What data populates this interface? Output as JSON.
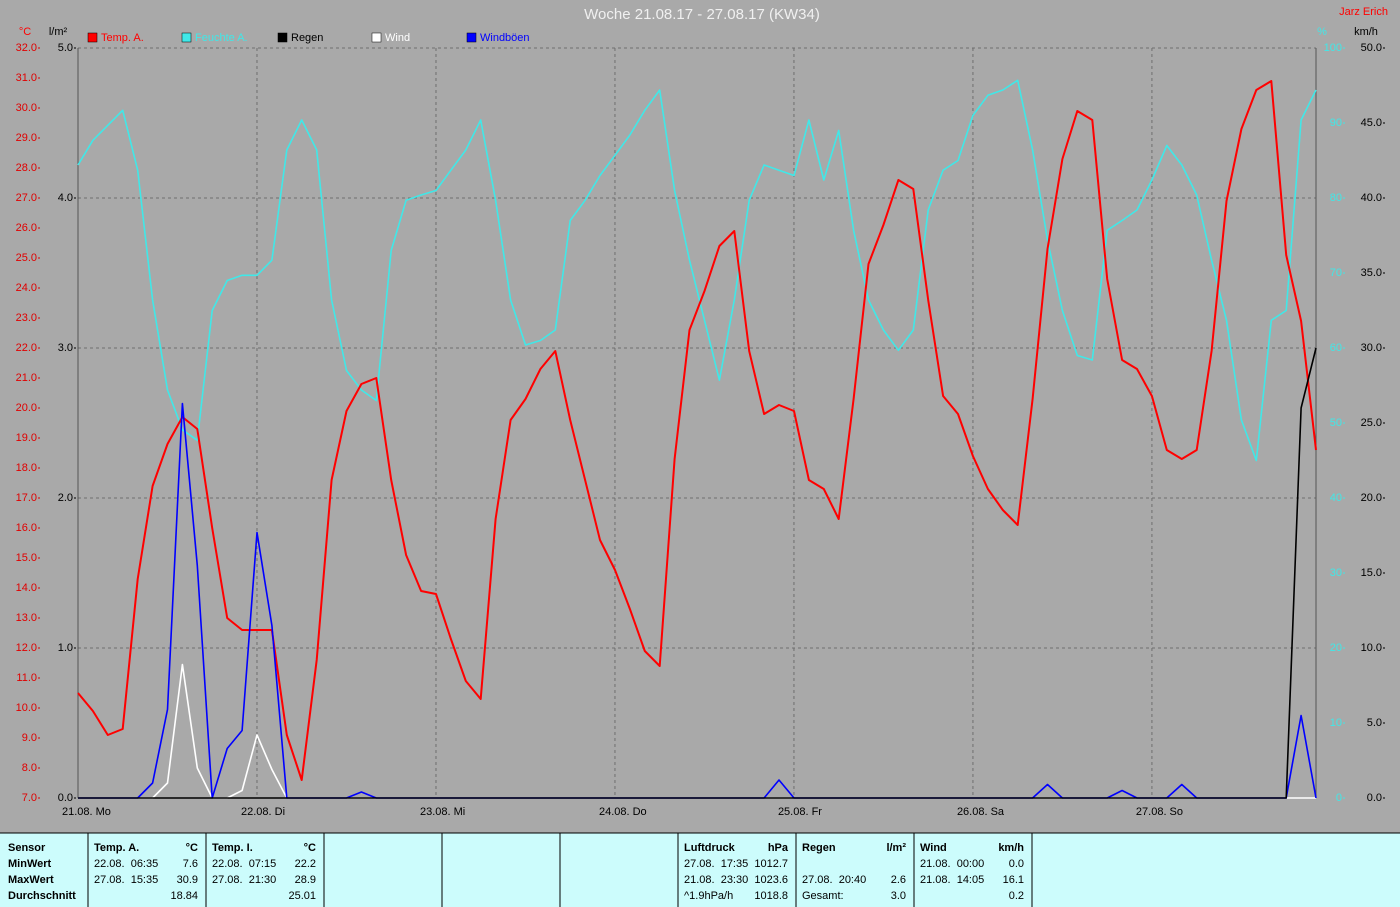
{
  "chart_data": {
    "type": "line",
    "title": "Woche 21.08.17 - 27.08.17 (KW34)",
    "author": "Jarz Erich",
    "y_label": "°C",
    "y2_label": "l/m²",
    "y3_label": "%",
    "y4_label": "km/h",
    "categories": [
      "21.08. Mo",
      null,
      null,
      null,
      null,
      null,
      null,
      null,
      null,
      null,
      null,
      null,
      "22.08. Di",
      null,
      null,
      null,
      null,
      null,
      null,
      null,
      null,
      null,
      null,
      null,
      "23.08. Mi",
      null,
      null,
      null,
      null,
      null,
      null,
      null,
      null,
      null,
      null,
      null,
      "24.08. Do",
      null,
      null,
      null,
      null,
      null,
      null,
      null,
      null,
      null,
      null,
      null,
      "25.08. Fr",
      null,
      null,
      null,
      null,
      null,
      null,
      null,
      null,
      null,
      null,
      null,
      "26.08. Sa",
      null,
      null,
      null,
      null,
      null,
      null,
      null,
      null,
      null,
      null,
      null,
      "27.08. So",
      null,
      null,
      null,
      null,
      null,
      null,
      null,
      null,
      null,
      null,
      null
    ],
    "ylim": [
      7,
      32
    ],
    "yticks": [
      {
        "value": 7,
        "label": "7.0"
      },
      {
        "value": 8,
        "label": "8.0"
      },
      {
        "value": 9,
        "label": "9.0"
      },
      {
        "value": 10,
        "label": "10.0"
      },
      {
        "value": 11,
        "label": "11.0"
      },
      {
        "value": 12,
        "label": "12.0"
      },
      {
        "value": 13,
        "label": "13.0"
      },
      {
        "value": 14,
        "label": "14.0"
      },
      {
        "value": 15,
        "label": "15.0"
      },
      {
        "value": 16,
        "label": "16.0"
      },
      {
        "value": 17,
        "label": "17.0"
      },
      {
        "value": 18,
        "label": "18.0"
      },
      {
        "value": 19,
        "label": "19.0"
      },
      {
        "value": 20,
        "label": "20.0"
      },
      {
        "value": 21,
        "label": "21.0"
      },
      {
        "value": 22,
        "label": "22.0"
      },
      {
        "value": 23,
        "label": "23.0"
      },
      {
        "value": 24,
        "label": "24.0"
      },
      {
        "value": 25,
        "label": "25.0"
      },
      {
        "value": 26,
        "label": "26.0"
      },
      {
        "value": 27,
        "label": "27.0"
      },
      {
        "value": 28,
        "label": "28.0"
      },
      {
        "value": 29,
        "label": "29.0"
      },
      {
        "value": 30,
        "label": "30.0"
      },
      {
        "value": 31,
        "label": "31.0"
      },
      {
        "value": 32,
        "label": "32.0"
      }
    ],
    "y2lim": [
      0,
      5
    ],
    "y2ticks": [
      {
        "value": 0,
        "label": "0.0"
      },
      {
        "value": 1,
        "label": "1.0"
      },
      {
        "value": 2,
        "label": "2.0"
      },
      {
        "value": 3,
        "label": "3.0"
      },
      {
        "value": 4,
        "label": "4.0"
      },
      {
        "value": 5,
        "label": "5.0"
      }
    ],
    "y3lim": [
      0,
      100
    ],
    "y3ticks": [
      0,
      10,
      20,
      30,
      40,
      50,
      60,
      70,
      80,
      90,
      100
    ],
    "y4lim": [
      0,
      50
    ],
    "y4ticks": [
      {
        "value": 0,
        "label": "0.0"
      },
      {
        "value": 5,
        "label": "5.0"
      },
      {
        "value": 10,
        "label": "10.0"
      },
      {
        "value": 15,
        "label": "15.0"
      },
      {
        "value": 20,
        "label": "20.0"
      },
      {
        "value": 25,
        "label": "25.0"
      },
      {
        "value": 30,
        "label": "30.0"
      },
      {
        "value": 35,
        "label": "35.0"
      },
      {
        "value": 40,
        "label": "40.0"
      },
      {
        "value": 45,
        "label": "45.0"
      },
      {
        "value": 50,
        "label": "50.0"
      }
    ],
    "grid": true,
    "series": [
      {
        "name": "Temp. A.",
        "color": "#ff0000",
        "axis": "y",
        "values": [
          10.5,
          9.9,
          9.1,
          9.3,
          14.3,
          17.4,
          18.8,
          19.7,
          19.3,
          16.0,
          13.0,
          12.6,
          12.6,
          12.6,
          9.1,
          7.6,
          11.6,
          17.6,
          19.9,
          20.8,
          21.0,
          17.6,
          15.1,
          13.9,
          13.8,
          12.3,
          10.9,
          10.3,
          16.3,
          19.6,
          20.3,
          21.3,
          21.9,
          19.6,
          17.6,
          15.6,
          14.6,
          13.3,
          11.9,
          11.4,
          18.3,
          22.6,
          23.9,
          25.4,
          25.9,
          21.9,
          19.8,
          20.1,
          19.9,
          17.6,
          17.3,
          16.3,
          20.3,
          24.8,
          26.1,
          27.6,
          27.3,
          23.6,
          20.4,
          19.8,
          18.4,
          17.3,
          16.6,
          16.1,
          20.3,
          25.3,
          28.3,
          29.9,
          29.6,
          24.3,
          21.6,
          21.3,
          20.4,
          18.6,
          18.3,
          18.6,
          21.9,
          26.9,
          29.3,
          30.6,
          30.9,
          25.1,
          22.9,
          18.6
        ]
      },
      {
        "name": "Feuchte A.",
        "color": "#40e8e8",
        "axis": "y3",
        "values": [
          84.4,
          87.7,
          89.7,
          91.7,
          83.7,
          66.4,
          54.4,
          49.1,
          47.7,
          65.0,
          69.0,
          69.7,
          69.7,
          71.7,
          86.4,
          90.4,
          86.4,
          66.4,
          57.0,
          54.4,
          53.0,
          73.0,
          79.7,
          80.4,
          81.0,
          83.7,
          86.4,
          90.4,
          79.7,
          66.4,
          60.4,
          61.0,
          62.4,
          77.0,
          79.7,
          83.0,
          85.7,
          88.4,
          91.7,
          94.4,
          81.0,
          71.7,
          63.7,
          55.7,
          66.4,
          79.7,
          84.4,
          83.7,
          83.0,
          90.4,
          82.4,
          89.0,
          75.7,
          66.4,
          62.4,
          59.7,
          62.4,
          78.4,
          83.7,
          85.0,
          91.0,
          93.7,
          94.4,
          95.7,
          86.4,
          74.4,
          65.0,
          59.0,
          58.4,
          75.7,
          77.0,
          78.4,
          82.4,
          87.0,
          84.4,
          80.4,
          71.7,
          63.7,
          50.4,
          45.0,
          63.7,
          65.0,
          90.4,
          94.4
        ]
      },
      {
        "name": "Regen",
        "color": "#000000",
        "axis": "y2",
        "values": [
          0,
          0,
          0,
          0,
          0,
          0,
          0,
          0,
          0,
          0,
          0,
          0,
          0,
          0,
          0,
          0,
          0,
          0,
          0,
          0,
          0,
          0,
          0,
          0,
          0,
          0,
          0,
          0,
          0,
          0,
          0,
          0,
          0,
          0,
          0,
          0,
          0,
          0,
          0,
          0,
          0,
          0,
          0,
          0,
          0,
          0,
          0,
          0,
          0,
          0,
          0,
          0,
          0,
          0,
          0,
          0,
          0,
          0,
          0,
          0,
          0,
          0,
          0,
          0,
          0,
          0,
          0,
          0,
          0,
          0,
          0,
          0,
          0,
          0,
          0,
          0,
          0,
          0,
          0,
          0,
          0,
          0,
          2.6,
          3.0
        ]
      },
      {
        "name": "Wind",
        "color": "#ffffff",
        "axis": "y4",
        "values": [
          0,
          0,
          0,
          0,
          0,
          0,
          1,
          8.9,
          2,
          0,
          0,
          0.5,
          4.2,
          1.9,
          0,
          0,
          0,
          0,
          0,
          0,
          0,
          0,
          0,
          0,
          0,
          0,
          0,
          0,
          0,
          0,
          0,
          0,
          0,
          0,
          0,
          0,
          0,
          0,
          0,
          0,
          0,
          0,
          0,
          0,
          0,
          0,
          0,
          0,
          0,
          0,
          0,
          0,
          0,
          0,
          0,
          0,
          0,
          0,
          0,
          0,
          0,
          0,
          0,
          0,
          0,
          0,
          0,
          0,
          0,
          0,
          0,
          0,
          0,
          0,
          0,
          0,
          0,
          0,
          0,
          0,
          0,
          0,
          0,
          0
        ]
      },
      {
        "name": "Windböen",
        "color": "#0000ff",
        "axis": "y4",
        "values": [
          0,
          0,
          0,
          0,
          0,
          1,
          5.9,
          26.3,
          15.5,
          0,
          3.3,
          4.5,
          17.7,
          11.5,
          0,
          0,
          0,
          0,
          0,
          0.4,
          0,
          0,
          0,
          0,
          0,
          0,
          0,
          0,
          0,
          0,
          0,
          0,
          0,
          0,
          0,
          0,
          0,
          0,
          0,
          0,
          0,
          0,
          0,
          0,
          0,
          0,
          0,
          1.2,
          0,
          0,
          0,
          0,
          0,
          0,
          0,
          0,
          0,
          0,
          0,
          0,
          0,
          0,
          0,
          0,
          0,
          0.9,
          0,
          0,
          0,
          0,
          0.5,
          0,
          0,
          0,
          0.9,
          0,
          0,
          0,
          0,
          0,
          0,
          0,
          5.5,
          0
        ]
      }
    ]
  },
  "table": {
    "header": "Sensor",
    "row_labels": [
      "MinWert",
      "MaxWert",
      "Durchschnitt"
    ],
    "columns": [
      {
        "title": "Temp. A.",
        "unit": "°C",
        "cells": [
          [
            "22.08.  06:35",
            "7.6"
          ],
          [
            "27.08.  15:35",
            "30.9"
          ],
          [
            null,
            "18.84"
          ]
        ]
      },
      {
        "title": "Temp. I.",
        "unit": "°C",
        "cells": [
          [
            "22.08.  07:15",
            "22.2"
          ],
          [
            "27.08.  21:30",
            "28.9"
          ],
          [
            null,
            "25.01"
          ]
        ]
      },
      {
        "title": "Luftdruck",
        "unit": "hPa",
        "cells": [
          [
            "27.08.  17:35",
            "1012.7"
          ],
          [
            "21.08.  23:30",
            "1023.6"
          ],
          [
            "^1.9hPa/h",
            "1018.8"
          ]
        ]
      },
      {
        "title": "Regen",
        "unit": "l/m²",
        "cells": [
          null,
          [
            "27.08.  20:40",
            "2.6"
          ],
          [
            "Gesamt:",
            "3.0"
          ]
        ]
      },
      {
        "title": "Wind",
        "unit": "km/h",
        "cells": [
          [
            "21.08.  00:00",
            "0.0"
          ],
          [
            "21.08.  14:05",
            "16.1"
          ],
          [
            null,
            "0.2"
          ]
        ]
      }
    ]
  }
}
